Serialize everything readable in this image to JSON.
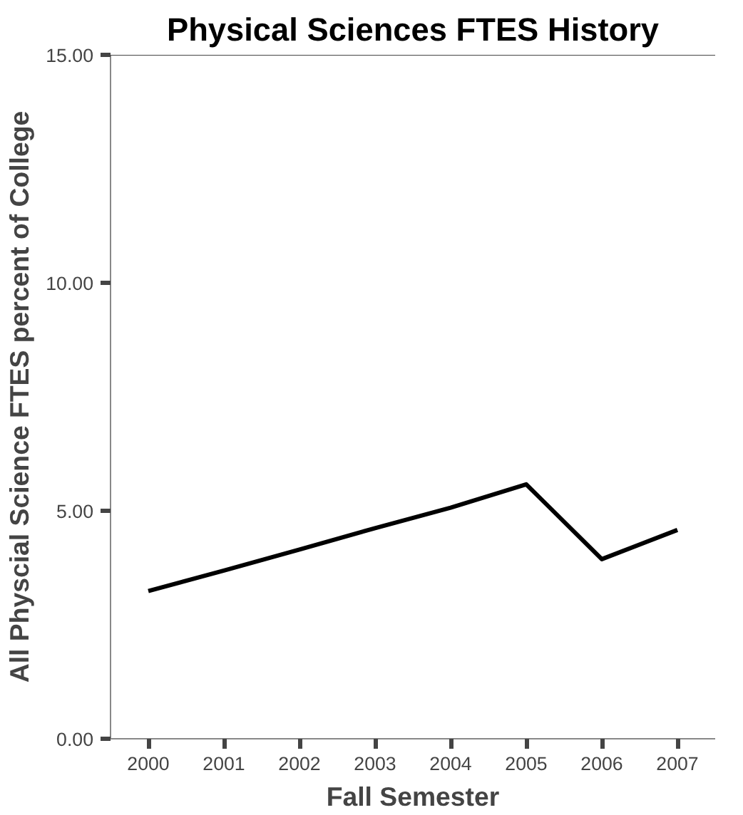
{
  "chart_data": {
    "type": "line",
    "title": "Physical Sciences FTES History",
    "xlabel": "Fall Semester",
    "ylabel": "All Physcial Science FTES percent of College",
    "categories": [
      "2000",
      "2001",
      "2002",
      "2003",
      "2004",
      "2005",
      "2006",
      "2007"
    ],
    "series": [
      {
        "color": "#000000",
        "values": [
          3.24,
          3.69,
          4.15,
          4.62,
          5.07,
          5.58,
          3.94,
          4.58
        ]
      }
    ],
    "ylim": [
      0,
      15
    ],
    "yticks": [
      {
        "value": 0,
        "label": "0.00"
      },
      {
        "value": 5,
        "label": "5.00"
      },
      {
        "value": 10,
        "label": "10.00"
      },
      {
        "value": 15,
        "label": "15.00"
      }
    ],
    "grid": false,
    "marker": "none",
    "line_style": "solid"
  }
}
